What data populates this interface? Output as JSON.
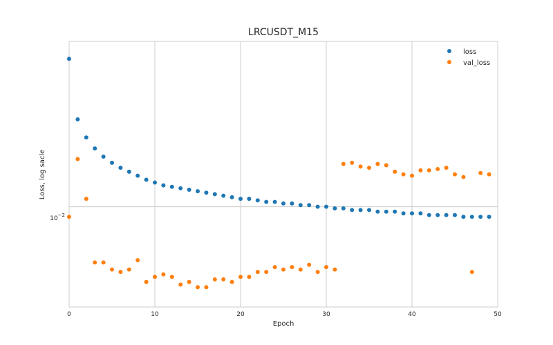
{
  "chart_data": {
    "type": "scatter",
    "title": "LRCUSDT_M15",
    "xlabel": "Epoch",
    "ylabel": "Loss, log sacle",
    "yscale": "log",
    "xlim": [
      0,
      50
    ],
    "ylim": [
      0.0054,
      0.0276
    ],
    "x_ticks": [
      0,
      10,
      20,
      30,
      40,
      50
    ],
    "x_tick_labels": [
      "0",
      "10",
      "20",
      "30",
      "40",
      "50"
    ],
    "y_ticks": [
      0.01
    ],
    "y_tick_label_base": "10",
    "y_tick_label_exp": "−2",
    "grid": true,
    "legend_position": "top-right",
    "series": [
      {
        "name": "loss",
        "color": "#1f77b4",
        "x": [
          0,
          1,
          2,
          3,
          4,
          5,
          6,
          7,
          8,
          9,
          10,
          11,
          12,
          13,
          14,
          15,
          16,
          17,
          18,
          19,
          20,
          21,
          22,
          23,
          24,
          25,
          26,
          27,
          28,
          29,
          30,
          31,
          32,
          33,
          34,
          35,
          36,
          37,
          38,
          39,
          40,
          41,
          42,
          43,
          44,
          45,
          46,
          47,
          48,
          49
        ],
        "y": [
          0.0248,
          0.0171,
          0.0153,
          0.0143,
          0.0136,
          0.0131,
          0.0127,
          0.0124,
          0.0121,
          0.0118,
          0.0116,
          0.0114,
          0.0113,
          0.0112,
          0.0111,
          0.011,
          0.0109,
          0.0108,
          0.0107,
          0.0106,
          0.0105,
          0.0105,
          0.0104,
          0.0103,
          0.0103,
          0.0102,
          0.0102,
          0.0101,
          0.0101,
          0.01,
          0.01,
          0.0099,
          0.0099,
          0.0098,
          0.0098,
          0.0098,
          0.0097,
          0.0097,
          0.0097,
          0.0096,
          0.0096,
          0.0096,
          0.0095,
          0.0095,
          0.0095,
          0.0095,
          0.0094,
          0.0094,
          0.0094,
          0.0094
        ]
      },
      {
        "name": "val_loss",
        "color": "#ff7f0e",
        "x": [
          0,
          1,
          2,
          3,
          4,
          5,
          6,
          7,
          8,
          9,
          10,
          11,
          12,
          13,
          14,
          15,
          16,
          17,
          18,
          19,
          20,
          21,
          22,
          23,
          24,
          25,
          26,
          27,
          28,
          29,
          30,
          31,
          32,
          33,
          34,
          35,
          36,
          37,
          38,
          39,
          40,
          41,
          42,
          43,
          44,
          45,
          46,
          47,
          48,
          49
        ],
        "y": [
          0.0094,
          0.0134,
          0.0105,
          0.0071,
          0.0071,
          0.0068,
          0.0067,
          0.0068,
          0.0072,
          0.0063,
          0.0065,
          0.0066,
          0.0065,
          0.0062,
          0.0063,
          0.0061,
          0.0061,
          0.0064,
          0.0064,
          0.0063,
          0.0065,
          0.0065,
          0.0067,
          0.0067,
          0.0069,
          0.0068,
          0.0069,
          0.0068,
          0.007,
          0.0067,
          0.0069,
          0.0068,
          0.013,
          0.0131,
          0.0128,
          0.0127,
          0.013,
          0.0129,
          0.0124,
          0.0122,
          0.0121,
          0.0125,
          0.0125,
          0.0126,
          0.0127,
          0.0122,
          0.012,
          0.0067,
          0.0123,
          0.0122
        ]
      }
    ]
  }
}
